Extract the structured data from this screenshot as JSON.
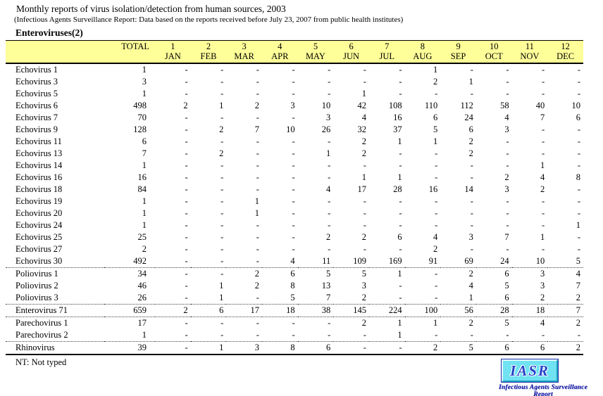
{
  "header": {
    "title": "Monthly reports of virus isolation/detection from human sources, 2003",
    "subtitle": "(Infectious Agents Surveillance Report: Data based on the reports received before July 23, 2007 from public health institutes)",
    "section": "Enteroviruses(2)"
  },
  "table": {
    "total_label": "TOTAL",
    "months": [
      {
        "num": "1",
        "name": "JAN"
      },
      {
        "num": "2",
        "name": "FEB"
      },
      {
        "num": "3",
        "name": "MAR"
      },
      {
        "num": "4",
        "name": "APR"
      },
      {
        "num": "5",
        "name": "MAY"
      },
      {
        "num": "6",
        "name": "JUN"
      },
      {
        "num": "7",
        "name": "JUL"
      },
      {
        "num": "8",
        "name": "AUG"
      },
      {
        "num": "9",
        "name": "SEP"
      },
      {
        "num": "10",
        "name": "OCT"
      },
      {
        "num": "11",
        "name": "NOV"
      },
      {
        "num": "12",
        "name": "DEC"
      }
    ],
    "rows": [
      {
        "label": "Echovirus 1",
        "total": "1",
        "sep": false,
        "values": [
          "-",
          "-",
          "-",
          "-",
          "-",
          "-",
          "-",
          "1",
          "-",
          "-",
          "-",
          "-"
        ]
      },
      {
        "label": "Echovirus 3",
        "total": "3",
        "sep": false,
        "values": [
          "-",
          "-",
          "-",
          "-",
          "-",
          "-",
          "-",
          "2",
          "1",
          "-",
          "-",
          "-"
        ]
      },
      {
        "label": "Echovirus 5",
        "total": "1",
        "sep": false,
        "values": [
          "-",
          "-",
          "-",
          "-",
          "-",
          "1",
          "-",
          "-",
          "-",
          "-",
          "-",
          "-"
        ]
      },
      {
        "label": "Echovirus 6",
        "total": "498",
        "sep": false,
        "values": [
          "2",
          "1",
          "2",
          "3",
          "10",
          "42",
          "108",
          "110",
          "112",
          "58",
          "40",
          "10"
        ]
      },
      {
        "label": "Echovirus 7",
        "total": "70",
        "sep": false,
        "values": [
          "-",
          "-",
          "-",
          "-",
          "3",
          "4",
          "16",
          "6",
          "24",
          "4",
          "7",
          "6"
        ]
      },
      {
        "label": "Echovirus 9",
        "total": "128",
        "sep": false,
        "values": [
          "-",
          "2",
          "7",
          "10",
          "26",
          "32",
          "37",
          "5",
          "6",
          "3",
          "-",
          "-"
        ]
      },
      {
        "label": "Echovirus 11",
        "total": "6",
        "sep": false,
        "values": [
          "-",
          "-",
          "-",
          "-",
          "-",
          "2",
          "1",
          "1",
          "2",
          "-",
          "-",
          "-"
        ]
      },
      {
        "label": "Echovirus 13",
        "total": "7",
        "sep": false,
        "values": [
          "-",
          "2",
          "-",
          "-",
          "1",
          "2",
          "-",
          "-",
          "2",
          "-",
          "-",
          "-"
        ]
      },
      {
        "label": "Echovirus 14",
        "total": "1",
        "sep": false,
        "values": [
          "-",
          "-",
          "-",
          "-",
          "-",
          "-",
          "-",
          "-",
          "-",
          "-",
          "1",
          "-"
        ]
      },
      {
        "label": "Echovirus 16",
        "total": "16",
        "sep": false,
        "values": [
          "-",
          "-",
          "-",
          "-",
          "-",
          "1",
          "1",
          "-",
          "-",
          "2",
          "4",
          "8"
        ]
      },
      {
        "label": "Echovirus 18",
        "total": "84",
        "sep": false,
        "values": [
          "-",
          "-",
          "-",
          "-",
          "4",
          "17",
          "28",
          "16",
          "14",
          "3",
          "2",
          "-"
        ]
      },
      {
        "label": "Echovirus 19",
        "total": "1",
        "sep": false,
        "values": [
          "-",
          "-",
          "1",
          "-",
          "-",
          "-",
          "-",
          "-",
          "-",
          "-",
          "-",
          "-"
        ]
      },
      {
        "label": "Echovirus 20",
        "total": "1",
        "sep": false,
        "values": [
          "-",
          "-",
          "1",
          "-",
          "-",
          "-",
          "-",
          "-",
          "-",
          "-",
          "-",
          "-"
        ]
      },
      {
        "label": "Echovirus 24",
        "total": "1",
        "sep": false,
        "values": [
          "-",
          "-",
          "-",
          "-",
          "-",
          "-",
          "-",
          "-",
          "-",
          "-",
          "-",
          "1"
        ]
      },
      {
        "label": "Echovirus 25",
        "total": "25",
        "sep": false,
        "values": [
          "-",
          "-",
          "-",
          "-",
          "2",
          "2",
          "6",
          "4",
          "3",
          "7",
          "1",
          "-"
        ]
      },
      {
        "label": "Echovirus 27",
        "total": "2",
        "sep": false,
        "values": [
          "-",
          "-",
          "-",
          "-",
          "-",
          "-",
          "-",
          "2",
          "-",
          "-",
          "-",
          "-"
        ]
      },
      {
        "label": "Echovirus 30",
        "total": "492",
        "sep": false,
        "values": [
          "-",
          "-",
          "-",
          "4",
          "11",
          "109",
          "169",
          "91",
          "69",
          "24",
          "10",
          "5"
        ]
      },
      {
        "label": "Poliovirus 1",
        "total": "34",
        "sep": true,
        "values": [
          "-",
          "-",
          "2",
          "6",
          "5",
          "5",
          "1",
          "-",
          "2",
          "6",
          "3",
          "4"
        ]
      },
      {
        "label": "Poliovirus 2",
        "total": "46",
        "sep": false,
        "values": [
          "-",
          "1",
          "2",
          "8",
          "13",
          "3",
          "-",
          "-",
          "4",
          "5",
          "3",
          "7"
        ]
      },
      {
        "label": "Poliovirus 3",
        "total": "26",
        "sep": false,
        "values": [
          "-",
          "1",
          "-",
          "5",
          "7",
          "2",
          "-",
          "-",
          "1",
          "6",
          "2",
          "2"
        ]
      },
      {
        "label": "Enterovirus 71",
        "total": "659",
        "sep": true,
        "values": [
          "2",
          "6",
          "17",
          "18",
          "38",
          "145",
          "224",
          "100",
          "56",
          "28",
          "18",
          "7"
        ]
      },
      {
        "label": "Parechovirus 1",
        "total": "17",
        "sep": true,
        "values": [
          "-",
          "-",
          "-",
          "-",
          "-",
          "2",
          "1",
          "1",
          "2",
          "5",
          "4",
          "2"
        ]
      },
      {
        "label": "Parechovirus 2",
        "total": "1",
        "sep": false,
        "values": [
          "-",
          "-",
          "-",
          "-",
          "-",
          "-",
          "1",
          "-",
          "-",
          "-",
          "-",
          "-"
        ]
      },
      {
        "label": "Rhinovirus",
        "total": "39",
        "sep": true,
        "values": [
          "-",
          "1",
          "3",
          "8",
          "6",
          "-",
          "-",
          "2",
          "5",
          "6",
          "6",
          "2"
        ]
      }
    ]
  },
  "footnote": "NT: Not typed",
  "logo": {
    "acronym": "IASR",
    "caption": "Infectious Agents Surveillance Report"
  },
  "colors": {
    "header_bg": "#FFFF99",
    "logo_bg": "#70E2F2",
    "logo_text": "#2340C8",
    "logo_caption": "#0A0AA0"
  }
}
